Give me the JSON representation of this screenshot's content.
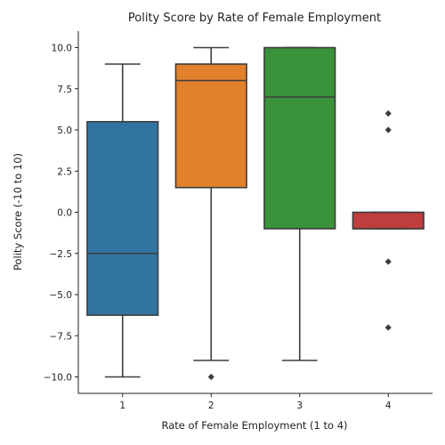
{
  "chart_data": {
    "type": "boxplot",
    "title": "Polity Score by Rate of Female Employment",
    "xlabel": "Rate of Female Employment (1 to 4)",
    "ylabel": "Polity Score (-10 to 10)",
    "ylim": [
      -11,
      11
    ],
    "yticks": [
      -10.0,
      -7.5,
      -5.0,
      -2.5,
      0.0,
      2.5,
      5.0,
      7.5,
      10.0
    ],
    "ytick_labels": [
      "−10.0",
      "−7.5",
      "−5.0",
      "−2.5",
      "0.0",
      "2.5",
      "5.0",
      "7.5",
      "10.0"
    ],
    "grid": false,
    "categories": [
      "1",
      "2",
      "3",
      "4"
    ],
    "boxes": [
      {
        "category": "1",
        "color": "#3274a1",
        "whisker_low": -10,
        "q1": -6.25,
        "median": -2.5,
        "q3": 5.5,
        "whisker_high": 9,
        "outliers": []
      },
      {
        "category": "2",
        "color": "#e1812c",
        "whisker_low": -9,
        "q1": 1.5,
        "median": 8,
        "q3": 9,
        "whisker_high": 10,
        "outliers": [
          -10
        ]
      },
      {
        "category": "3",
        "color": "#3a923a",
        "whisker_low": -9,
        "q1": -1,
        "median": 7,
        "q3": 10,
        "whisker_high": 10,
        "outliers": []
      },
      {
        "category": "4",
        "color": "#c03d3e",
        "whisker_low": -1,
        "q1": -1,
        "median": -1,
        "q3": 0,
        "whisker_high": 0,
        "outliers": [
          6,
          5,
          -3,
          -7
        ]
      }
    ]
  }
}
